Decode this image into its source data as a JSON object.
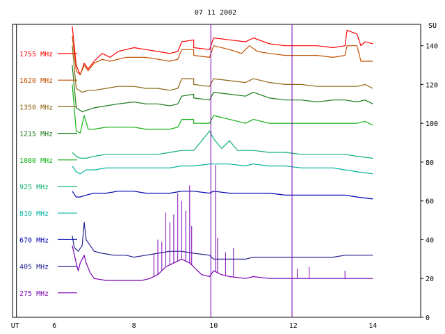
{
  "chart_data": {
    "type": "line",
    "title": "07 11 2002",
    "xlabel": "UT",
    "ylabel": "SU",
    "xlim": [
      4.95,
      15.2
    ],
    "ylim": [
      0,
      151
    ],
    "x_ticks": [
      6,
      8,
      10,
      12,
      14
    ],
    "y_ticks": [
      0,
      20,
      40,
      60,
      80,
      100,
      120,
      140
    ],
    "ut_marker": 5.05,
    "grid": false,
    "legend_position": "left",
    "markers": [
      {
        "x": 9.93,
        "color": "#7a00b0"
      },
      {
        "x": 11.97,
        "color": "#7a00b0"
      }
    ],
    "series": [
      {
        "name": "1755 MHz",
        "color": "#ff0000",
        "points": [
          [
            6.45,
            150
          ],
          [
            6.55,
            130
          ],
          [
            6.65,
            125
          ],
          [
            6.75,
            131
          ],
          [
            6.85,
            128
          ],
          [
            7,
            132
          ],
          [
            7.2,
            136
          ],
          [
            7.4,
            134
          ],
          [
            7.6,
            137
          ],
          [
            7.8,
            138
          ],
          [
            8,
            139
          ],
          [
            8.3,
            138
          ],
          [
            8.6,
            137
          ],
          [
            8.9,
            136
          ],
          [
            9.1,
            137
          ],
          [
            9.2,
            142
          ],
          [
            9.5,
            143
          ],
          [
            9.5,
            139
          ],
          [
            9.9,
            138
          ],
          [
            10,
            144
          ],
          [
            10.4,
            143
          ],
          [
            10.8,
            142
          ],
          [
            11,
            144
          ],
          [
            11.4,
            141
          ],
          [
            11.8,
            140
          ],
          [
            12.2,
            140
          ],
          [
            12.6,
            140
          ],
          [
            13,
            139
          ],
          [
            13.3,
            140
          ],
          [
            13.35,
            148
          ],
          [
            13.6,
            146
          ],
          [
            13.7,
            140
          ],
          [
            13.8,
            142
          ],
          [
            14,
            141
          ]
        ]
      },
      {
        "name": "1620 MHz",
        "color": "#c05000",
        "points": [
          [
            6.45,
            145
          ],
          [
            6.55,
            127
          ],
          [
            6.65,
            125
          ],
          [
            6.75,
            130
          ],
          [
            6.85,
            127
          ],
          [
            7,
            131
          ],
          [
            7.2,
            133
          ],
          [
            7.4,
            132
          ],
          [
            7.6,
            133
          ],
          [
            7.8,
            134
          ],
          [
            8,
            134
          ],
          [
            8.3,
            134
          ],
          [
            8.6,
            133
          ],
          [
            8.9,
            132
          ],
          [
            9.1,
            133
          ],
          [
            9.2,
            138
          ],
          [
            9.5,
            138
          ],
          [
            9.5,
            135
          ],
          [
            9.9,
            134
          ],
          [
            10,
            140
          ],
          [
            10.4,
            138
          ],
          [
            10.7,
            136
          ],
          [
            10.9,
            140
          ],
          [
            11.1,
            137
          ],
          [
            11.4,
            136
          ],
          [
            11.8,
            135
          ],
          [
            12.2,
            135
          ],
          [
            12.6,
            135
          ],
          [
            13,
            134
          ],
          [
            13.3,
            135
          ],
          [
            13.35,
            140
          ],
          [
            13.6,
            140
          ],
          [
            13.7,
            132
          ],
          [
            14,
            132
          ]
        ]
      },
      {
        "name": "1350 MHz",
        "color": "#8b6410",
        "points": [
          [
            6.45,
            140
          ],
          [
            6.55,
            118
          ],
          [
            6.7,
            116
          ],
          [
            6.85,
            117
          ],
          [
            7,
            117
          ],
          [
            7.3,
            118
          ],
          [
            7.6,
            119
          ],
          [
            8,
            119
          ],
          [
            8.3,
            118
          ],
          [
            8.6,
            118
          ],
          [
            8.9,
            117
          ],
          [
            9.1,
            118
          ],
          [
            9.2,
            123
          ],
          [
            9.5,
            123
          ],
          [
            9.5,
            120
          ],
          [
            9.9,
            119
          ],
          [
            10,
            123
          ],
          [
            10.4,
            122
          ],
          [
            10.8,
            121
          ],
          [
            11,
            123
          ],
          [
            11.4,
            121
          ],
          [
            11.8,
            120
          ],
          [
            12.2,
            120
          ],
          [
            12.6,
            119
          ],
          [
            13,
            119
          ],
          [
            13.3,
            119
          ],
          [
            13.6,
            119
          ],
          [
            13.8,
            120
          ],
          [
            14,
            118
          ]
        ]
      },
      {
        "name": "1215 MHz",
        "color": "#1a7a1a",
        "points": [
          [
            6.45,
            130
          ],
          [
            6.55,
            108
          ],
          [
            6.7,
            106
          ],
          [
            6.85,
            107
          ],
          [
            7,
            108
          ],
          [
            7.3,
            109
          ],
          [
            7.6,
            110
          ],
          [
            8,
            111
          ],
          [
            8.3,
            110
          ],
          [
            8.6,
            110
          ],
          [
            8.9,
            109
          ],
          [
            9.1,
            110
          ],
          [
            9.2,
            114
          ],
          [
            9.5,
            115
          ],
          [
            9.5,
            113
          ],
          [
            9.9,
            112
          ],
          [
            10,
            116
          ],
          [
            10.4,
            115
          ],
          [
            10.8,
            114
          ],
          [
            11,
            116
          ],
          [
            11.4,
            113
          ],
          [
            11.8,
            112
          ],
          [
            12.2,
            112
          ],
          [
            12.6,
            111
          ],
          [
            13,
            112
          ],
          [
            13.3,
            112
          ],
          [
            13.6,
            111
          ],
          [
            13.8,
            112
          ],
          [
            14,
            110
          ]
        ]
      },
      {
        "name": "1080 MHz",
        "color": "#10b010",
        "points": [
          [
            6.45,
            120
          ],
          [
            6.55,
            96
          ],
          [
            6.65,
            95
          ],
          [
            6.75,
            104
          ],
          [
            6.85,
            97
          ],
          [
            7,
            97
          ],
          [
            7.3,
            98
          ],
          [
            7.6,
            98
          ],
          [
            8,
            98
          ],
          [
            8.3,
            97
          ],
          [
            8.6,
            97
          ],
          [
            8.9,
            97
          ],
          [
            9.1,
            98
          ],
          [
            9.2,
            102
          ],
          [
            9.5,
            102
          ],
          [
            9.5,
            100
          ],
          [
            9.9,
            100
          ],
          [
            10,
            104
          ],
          [
            10.4,
            102
          ],
          [
            10.8,
            100
          ],
          [
            11,
            102
          ],
          [
            11.4,
            100
          ],
          [
            11.8,
            100
          ],
          [
            12.2,
            100
          ],
          [
            12.6,
            100
          ],
          [
            13,
            100
          ],
          [
            13.3,
            100
          ],
          [
            13.6,
            100
          ],
          [
            13.8,
            101
          ],
          [
            14,
            99
          ]
        ]
      },
      {
        "name": "925 MHz",
        "color": "#10b070",
        "points": [
          [
            6.45,
            85
          ],
          [
            6.55,
            83
          ],
          [
            6.65,
            82
          ],
          [
            6.8,
            82
          ],
          [
            7,
            83
          ],
          [
            7.3,
            84
          ],
          [
            7.6,
            84
          ],
          [
            8,
            84
          ],
          [
            8.3,
            84
          ],
          [
            8.6,
            84
          ],
          [
            8.9,
            85
          ],
          [
            9.2,
            86
          ],
          [
            9.5,
            86
          ],
          [
            9.9,
            96
          ],
          [
            10,
            92
          ],
          [
            10.2,
            87
          ],
          [
            10.4,
            91
          ],
          [
            10.6,
            86
          ],
          [
            11,
            86
          ],
          [
            11.4,
            85
          ],
          [
            11.8,
            85
          ],
          [
            12.2,
            84
          ],
          [
            12.6,
            84
          ],
          [
            13,
            84
          ],
          [
            13.3,
            84
          ],
          [
            13.6,
            83
          ],
          [
            14,
            82
          ]
        ]
      },
      {
        "name": "810 MHz",
        "color": "#00b0a0",
        "points": [
          [
            6.45,
            78
          ],
          [
            6.55,
            75
          ],
          [
            6.65,
            74
          ],
          [
            6.8,
            76
          ],
          [
            7,
            76
          ],
          [
            7.3,
            77
          ],
          [
            7.6,
            77
          ],
          [
            8,
            77
          ],
          [
            8.3,
            77
          ],
          [
            8.6,
            77
          ],
          [
            8.9,
            77
          ],
          [
            9.2,
            78
          ],
          [
            9.5,
            78
          ],
          [
            9.9,
            79
          ],
          [
            10,
            79
          ],
          [
            10.4,
            79
          ],
          [
            10.8,
            78
          ],
          [
            11,
            79
          ],
          [
            11.4,
            78
          ],
          [
            11.8,
            78
          ],
          [
            12.2,
            77
          ],
          [
            12.6,
            77
          ],
          [
            13,
            77
          ],
          [
            13.3,
            76
          ],
          [
            13.6,
            75
          ],
          [
            14,
            74
          ]
        ]
      },
      {
        "name": "670 MHz",
        "color": "#0000b0",
        "points": [
          [
            6.45,
            65
          ],
          [
            6.55,
            62
          ],
          [
            6.65,
            62
          ],
          [
            6.8,
            63
          ],
          [
            7,
            64
          ],
          [
            7.3,
            64
          ],
          [
            7.6,
            65
          ],
          [
            8,
            65
          ],
          [
            8.3,
            64
          ],
          [
            8.6,
            64
          ],
          [
            8.9,
            64
          ],
          [
            9.2,
            65
          ],
          [
            9.5,
            65
          ],
          [
            9.9,
            64
          ],
          [
            10,
            65
          ],
          [
            10.4,
            64
          ],
          [
            10.8,
            64
          ],
          [
            11,
            64
          ],
          [
            11.4,
            64
          ],
          [
            11.8,
            63
          ],
          [
            12.2,
            63
          ],
          [
            12.6,
            63
          ],
          [
            13,
            63
          ],
          [
            13.3,
            63
          ],
          [
            13.6,
            62
          ],
          [
            14,
            61
          ]
        ]
      },
      {
        "name": "405 MHz",
        "color": "#202090",
        "points": [
          [
            6.45,
            42
          ],
          [
            6.5,
            36
          ],
          [
            6.6,
            34
          ],
          [
            6.7,
            37
          ],
          [
            6.75,
            49
          ],
          [
            6.8,
            40
          ],
          [
            6.9,
            37
          ],
          [
            7,
            34
          ],
          [
            7.2,
            33
          ],
          [
            7.5,
            32
          ],
          [
            7.8,
            32
          ],
          [
            8,
            31
          ],
          [
            8.3,
            32
          ],
          [
            8.6,
            33
          ],
          [
            8.9,
            34
          ],
          [
            9.2,
            34
          ],
          [
            9.5,
            33
          ],
          [
            9.9,
            32
          ],
          [
            10,
            30
          ],
          [
            10.4,
            30
          ],
          [
            10.8,
            30
          ],
          [
            11,
            31
          ],
          [
            11.4,
            31
          ],
          [
            11.8,
            31
          ],
          [
            12.2,
            31
          ],
          [
            12.6,
            31
          ],
          [
            13,
            31
          ],
          [
            13.3,
            32
          ],
          [
            13.6,
            32
          ],
          [
            14,
            32
          ]
        ]
      },
      {
        "name": "275 MHz",
        "color": "#7a00b0",
        "points": [
          [
            6.45,
            37
          ],
          [
            6.55,
            28
          ],
          [
            6.6,
            24
          ],
          [
            6.65,
            28
          ],
          [
            6.75,
            32
          ],
          [
            6.8,
            28
          ],
          [
            6.9,
            23
          ],
          [
            7,
            20
          ],
          [
            7.3,
            19
          ],
          [
            7.6,
            19
          ],
          [
            7.9,
            19
          ],
          [
            8.2,
            19
          ],
          [
            8.4,
            20
          ],
          [
            8.6,
            22
          ],
          [
            8.8,
            26
          ],
          [
            9,
            28
          ],
          [
            9.2,
            30
          ],
          [
            9.4,
            28
          ],
          [
            9.5,
            26
          ],
          [
            9.7,
            22
          ],
          [
            9.9,
            21
          ],
          [
            10,
            24
          ],
          [
            10.2,
            22
          ],
          [
            10.4,
            21
          ],
          [
            10.8,
            20
          ],
          [
            11,
            21
          ],
          [
            11.4,
            20
          ],
          [
            11.8,
            20
          ],
          [
            12.2,
            20
          ],
          [
            12.6,
            20
          ],
          [
            13,
            20
          ],
          [
            13.3,
            20
          ],
          [
            13.6,
            20
          ],
          [
            14,
            20
          ]
        ]
      }
    ],
    "spikes": [
      {
        "series": 9,
        "x": [
          8.5,
          8.6,
          8.7,
          8.8,
          8.9,
          9.0,
          9.1,
          9.2,
          9.3,
          9.4,
          9.45,
          10.1,
          10.3,
          10.5,
          12.1,
          12.4,
          13.3
        ],
        "height": [
          12,
          18,
          15,
          28,
          22,
          25,
          35,
          30,
          26,
          40,
          20,
          18,
          12,
          15,
          5,
          6,
          4
        ]
      },
      {
        "series": 9,
        "x": [
          10.05
        ],
        "height": [
          55
        ]
      }
    ]
  }
}
